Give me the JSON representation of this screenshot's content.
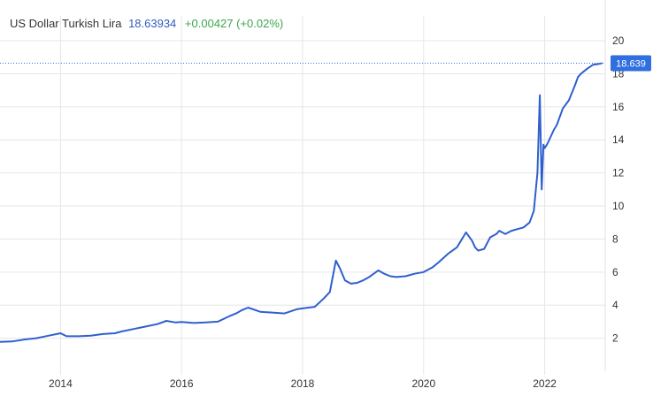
{
  "header": {
    "title": "US Dollar Turkish Lira",
    "price": "18.63934",
    "change": "+0.00427 (+0.02%)"
  },
  "colors": {
    "line": "#2f5fcf",
    "price_text": "#2f5fbf",
    "change_text": "#3ba74a",
    "last_price_badge": "#2f6fe0",
    "grid": "#e6e6e6"
  },
  "chart_data": {
    "type": "line",
    "title": "",
    "xlabel": "",
    "ylabel": "",
    "x_tick_labels": [
      "2014",
      "2016",
      "2018",
      "2020",
      "2022"
    ],
    "y_tick_labels": [
      "2",
      "4",
      "6",
      "8",
      "10",
      "12",
      "14",
      "16",
      "18",
      "20"
    ],
    "ylim": [
      0,
      21.5
    ],
    "xlim": [
      2013.0,
      2023.0
    ],
    "grid": true,
    "y_axis_side": "right",
    "last_value_label": "18.639",
    "last_value": 18.639,
    "series": [
      {
        "x": [
          2013.0,
          2013.2,
          2013.4,
          2013.6,
          2013.8,
          2014.0,
          2014.1,
          2014.3,
          2014.5,
          2014.7,
          2014.9,
          2015.0,
          2015.2,
          2015.4,
          2015.6,
          2015.75,
          2015.9,
          2016.0,
          2016.2,
          2016.4,
          2016.6,
          2016.8,
          2016.9,
          2017.0,
          2017.1,
          2017.3,
          2017.5,
          2017.7,
          2017.9,
          2018.0,
          2018.2,
          2018.35,
          2018.45,
          2018.55,
          2018.62,
          2018.7,
          2018.8,
          2018.9,
          2019.0,
          2019.1,
          2019.25,
          2019.35,
          2019.45,
          2019.55,
          2019.7,
          2019.85,
          2020.0,
          2020.15,
          2020.25,
          2020.4,
          2020.55,
          2020.7,
          2020.8,
          2020.85,
          2020.9,
          2021.0,
          2021.1,
          2021.2,
          2021.25,
          2021.35,
          2021.45,
          2021.55,
          2021.65,
          2021.75,
          2021.82,
          2021.88,
          2021.92,
          2021.95,
          2021.98,
          2022.0,
          2022.05,
          2022.15,
          2022.2,
          2022.3,
          2022.4,
          2022.5,
          2022.55,
          2022.6,
          2022.7,
          2022.8,
          2022.9,
          2022.95
        ],
        "y": [
          1.78,
          1.8,
          1.92,
          2.0,
          2.15,
          2.3,
          2.12,
          2.12,
          2.15,
          2.25,
          2.3,
          2.4,
          2.55,
          2.7,
          2.85,
          3.05,
          2.95,
          2.98,
          2.92,
          2.95,
          3.0,
          3.35,
          3.5,
          3.7,
          3.85,
          3.6,
          3.55,
          3.5,
          3.75,
          3.8,
          3.9,
          4.4,
          4.8,
          6.7,
          6.2,
          5.5,
          5.3,
          5.35,
          5.5,
          5.7,
          6.1,
          5.9,
          5.75,
          5.7,
          5.75,
          5.9,
          6.0,
          6.3,
          6.6,
          7.1,
          7.5,
          8.4,
          7.9,
          7.5,
          7.3,
          7.4,
          8.1,
          8.3,
          8.5,
          8.3,
          8.5,
          8.6,
          8.7,
          9.0,
          9.7,
          12.0,
          16.7,
          11.0,
          13.7,
          13.5,
          13.8,
          14.6,
          14.9,
          15.9,
          16.4,
          17.3,
          17.8,
          18.0,
          18.3,
          18.55,
          18.6,
          18.639
        ]
      }
    ]
  }
}
